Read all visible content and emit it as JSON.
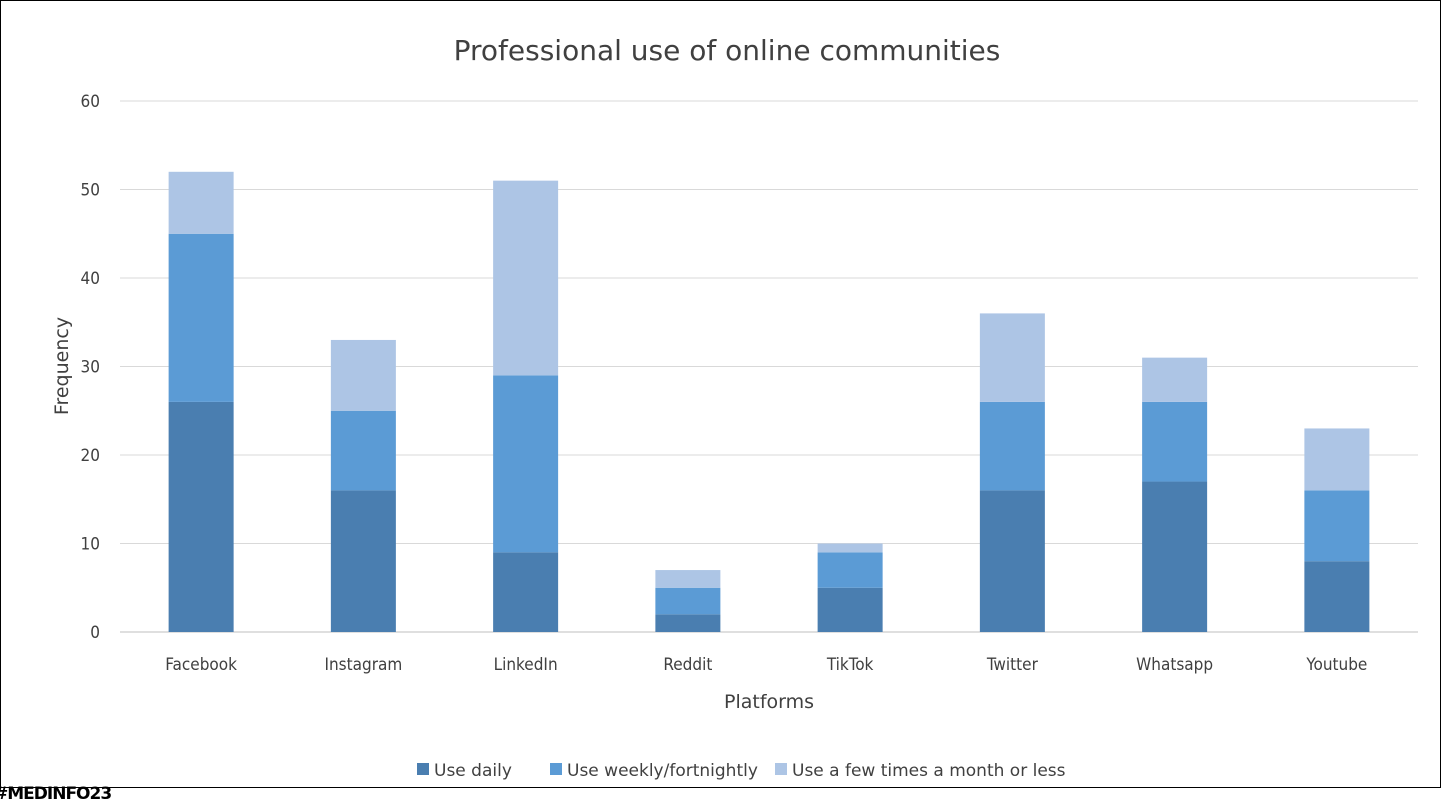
{
  "hashtag": "#MEDINFO23",
  "chart_data": {
    "type": "bar",
    "stacked": true,
    "title": "Professional use of online communities",
    "xlabel": "Platforms",
    "ylabel": "Frequency",
    "ylim": [
      0,
      60
    ],
    "yticks": [
      0,
      10,
      20,
      30,
      40,
      50,
      60
    ],
    "grid": true,
    "legend_position": "bottom",
    "categories": [
      "Facebook",
      "Instagram",
      "LinkedIn",
      "Reddit",
      "TikTok",
      "Twitter",
      "Whatsapp",
      "Youtube"
    ],
    "series": [
      {
        "name": "Use daily",
        "color": "#4a7eb0",
        "values": [
          26,
          16,
          9,
          2,
          5,
          16,
          17,
          8
        ]
      },
      {
        "name": "Use weekly/fortnightly",
        "color": "#5b9bd5",
        "values": [
          19,
          9,
          20,
          3,
          4,
          10,
          9,
          8
        ]
      },
      {
        "name": "Use a few times a month or less",
        "color": "#adc5e5",
        "values": [
          7,
          8,
          22,
          2,
          1,
          10,
          5,
          7
        ]
      }
    ]
  }
}
